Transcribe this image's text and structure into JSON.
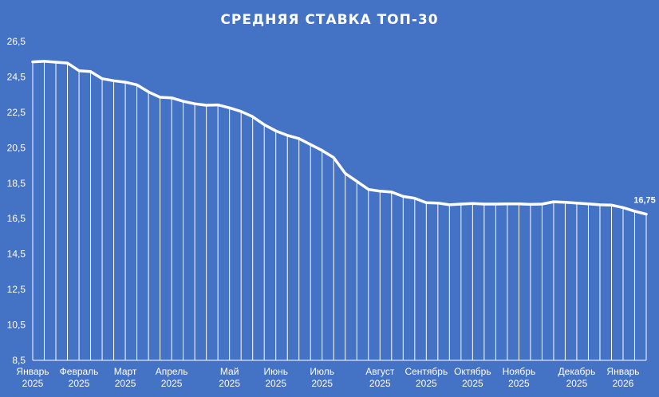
{
  "chart_data": {
    "type": "area",
    "title": "СРЕДНЯЯ СТАВКА ТОП-30",
    "xlabel": "",
    "ylabel": "",
    "ylim": [
      8.5,
      26.5
    ],
    "y_ticks": [
      "8,5",
      "10,5",
      "12,5",
      "14,5",
      "16,5",
      "18,5",
      "20,5",
      "22,5",
      "24,5",
      "26,5"
    ],
    "x_ticks": [
      {
        "month": "Январь",
        "year": "2025",
        "index": 0
      },
      {
        "month": "Февраль",
        "year": "2025",
        "index": 4
      },
      {
        "month": "Март",
        "year": "2025",
        "index": 8
      },
      {
        "month": "Апрель",
        "year": "2025",
        "index": 12
      },
      {
        "month": "Май",
        "year": "2025",
        "index": 17
      },
      {
        "month": "Июнь",
        "year": "2025",
        "index": 21
      },
      {
        "month": "Июль",
        "year": "2025",
        "index": 25
      },
      {
        "month": "Август",
        "year": "2025",
        "index": 30
      },
      {
        "month": "Сентябрь",
        "year": "2025",
        "index": 34
      },
      {
        "month": "Октябрь",
        "year": "2025",
        "index": 38
      },
      {
        "month": "Ноябрь",
        "year": "2025",
        "index": 42
      },
      {
        "month": "Декабрь",
        "year": "2025",
        "index": 47
      },
      {
        "month": "Январь",
        "year": "2026",
        "index": 51
      }
    ],
    "grid": false,
    "series": [
      {
        "values": [
          25.35,
          25.38,
          25.33,
          25.28,
          24.85,
          24.8,
          24.4,
          24.28,
          24.2,
          24.05,
          23.65,
          23.35,
          23.32,
          23.12,
          22.98,
          22.9,
          22.92,
          22.75,
          22.55,
          22.25,
          21.8,
          21.45,
          21.2,
          21.02,
          20.68,
          20.35,
          19.95,
          19.05,
          18.6,
          18.15,
          18.05,
          18.0,
          17.75,
          17.65,
          17.4,
          17.38,
          17.28,
          17.32,
          17.35,
          17.32,
          17.32,
          17.33,
          17.33,
          17.3,
          17.32,
          17.45,
          17.42,
          17.38,
          17.33,
          17.28,
          17.26,
          17.12,
          16.92,
          16.75
        ]
      }
    ],
    "data_labels": [
      {
        "index": 53,
        "text": "16,75"
      }
    ],
    "colors": {
      "background": "#4472C4",
      "line": "#FFFFFF",
      "text": "#FFFFFF"
    }
  }
}
